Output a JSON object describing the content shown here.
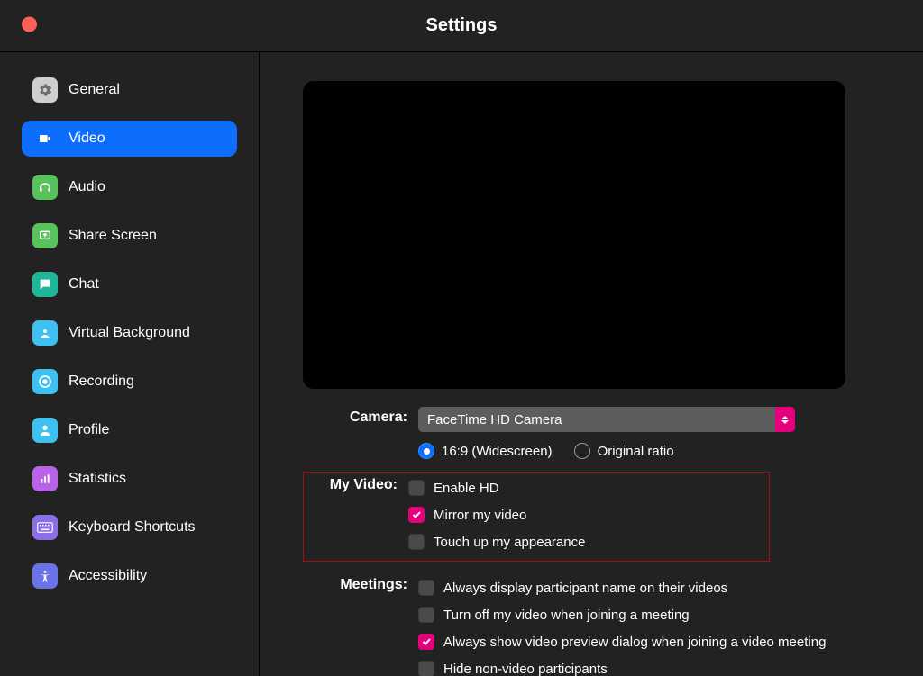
{
  "window": {
    "title": "Settings"
  },
  "colors": {
    "bg": "#222222",
    "selected": "#0d6efd",
    "accent_pink": "#e6007e",
    "highlight_border": "#a60f0f",
    "traffic_close": "#fe5f57",
    "select_bg": "#5d5d5d",
    "checkbox_bg": "#4a4a4a"
  },
  "sidebar": {
    "items": [
      {
        "id": "general",
        "label": "General",
        "icon_bg": "#cfcfcf",
        "selected": false
      },
      {
        "id": "video",
        "label": "Video",
        "icon_bg": "#0d6efd",
        "selected": true
      },
      {
        "id": "audio",
        "label": "Audio",
        "icon_bg": "#58c35a",
        "selected": false
      },
      {
        "id": "share",
        "label": "Share Screen",
        "icon_bg": "#58c35a",
        "selected": false
      },
      {
        "id": "chat",
        "label": "Chat",
        "icon_bg": "#1fb79a",
        "selected": false
      },
      {
        "id": "vbg",
        "label": "Virtual Background",
        "icon_bg": "#3ec1f0",
        "selected": false
      },
      {
        "id": "recording",
        "label": "Recording",
        "icon_bg": "#3ec1f0",
        "selected": false
      },
      {
        "id": "profile",
        "label": "Profile",
        "icon_bg": "#3ec1f0",
        "selected": false
      },
      {
        "id": "stats",
        "label": "Statistics",
        "icon_bg": "#b762e8",
        "selected": false
      },
      {
        "id": "keyboard",
        "label": "Keyboard Shortcuts",
        "icon_bg": "#8a6fe8",
        "selected": false
      },
      {
        "id": "a11y",
        "label": "Accessibility",
        "icon_bg": "#6a74e8",
        "selected": false
      }
    ]
  },
  "camera": {
    "label": "Camera:",
    "selected": "FaceTime HD Camera",
    "ratio": {
      "widescreen": "16:9 (Widescreen)",
      "original": "Original ratio",
      "value": "widescreen"
    }
  },
  "myvideo": {
    "label": "My Video:",
    "items": [
      {
        "id": "hd",
        "label": "Enable HD",
        "checked": false
      },
      {
        "id": "mirror",
        "label": "Mirror my video",
        "checked": true
      },
      {
        "id": "touchup",
        "label": "Touch up my appearance",
        "checked": false
      }
    ]
  },
  "meetings": {
    "label": "Meetings:",
    "items": [
      {
        "id": "names",
        "label": "Always display participant name on their videos",
        "checked": false
      },
      {
        "id": "offjoin",
        "label": "Turn off my video when joining a meeting",
        "checked": false
      },
      {
        "id": "preview",
        "label": "Always show video preview dialog when joining a video meeting",
        "checked": true
      },
      {
        "id": "hidenv",
        "label": "Hide non-video participants",
        "checked": false
      }
    ]
  }
}
